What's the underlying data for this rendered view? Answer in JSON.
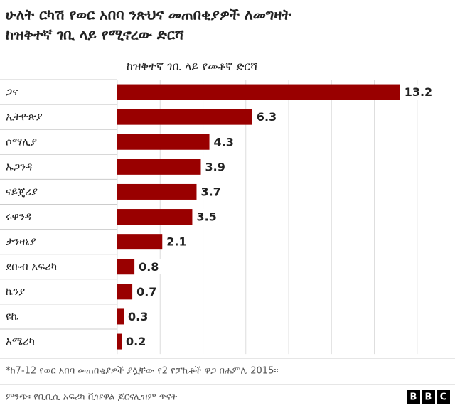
{
  "chart_data": {
    "type": "bar",
    "orientation": "horizontal",
    "title": [
      "ሁለት ርካሽ የወር አበባ ንጽህና መጠበቂያዎች ለመግዛት",
      "ከዝቅተኛ ገቢ ላይ የሚኖረው ድርሻ"
    ],
    "subtitle": "ከዝቅተኛ ገቢ ላይ የመቶኛ ድርሻ",
    "categories": [
      "ጋና",
      "ኢትዮጵያ",
      "ሶማሊያ",
      "ኡጋንዳ",
      "ናይጄሪያ",
      "ሩዋንዳ",
      "ታንዛኒያ",
      "ደቡብ አፍሪካ",
      "ኬንያ",
      "ዩኬ",
      "አሜሪካ"
    ],
    "values": [
      13.2,
      6.3,
      4.3,
      3.9,
      3.7,
      3.5,
      2.1,
      0.8,
      0.7,
      0.3,
      0.2
    ],
    "color": "#990000",
    "xlim": [
      0,
      15.5
    ],
    "xticks": [
      0,
      2,
      4,
      6,
      8,
      10,
      12,
      14
    ],
    "grid": true,
    "footnote": "*ከ7-12 የወር አበባ መጠበቂያዎች ያሏቸው የ2 የፓኬቶች ዋጋ በሐምሌ 2015፡፡",
    "source": "ምንጭ፡ የቢቢሲ አፍሪካ ቪዡዋል ጆርናሊዝም ጥናት",
    "logo": [
      "B",
      "B",
      "C"
    ]
  }
}
